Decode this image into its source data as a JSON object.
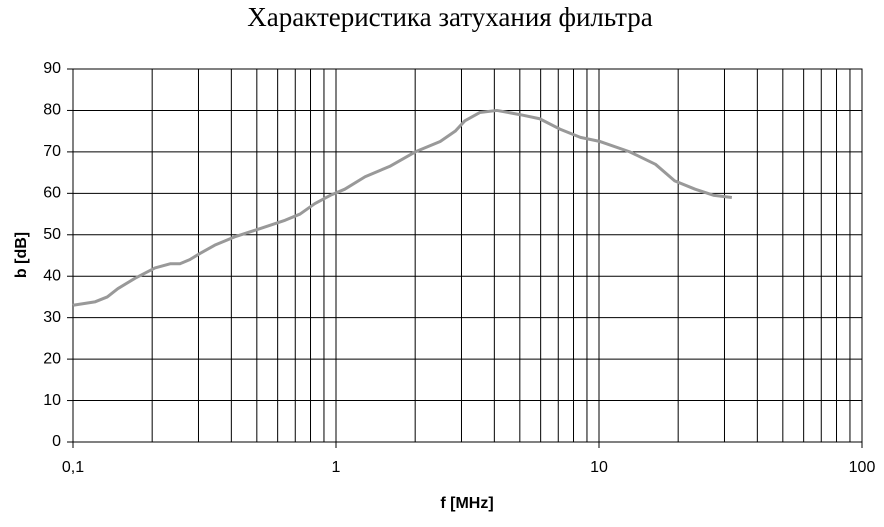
{
  "chart_data": {
    "type": "line",
    "title": "Характеристика затухания фильтра",
    "x_label": "f [MHz]",
    "y_label": "b [dB]",
    "xscale": "log",
    "grid": true,
    "xlim": [
      0.1,
      100
    ],
    "ylim": [
      0,
      90
    ],
    "xticks": [
      {
        "value": 0.1,
        "label": "0,1"
      },
      1,
      10,
      100
    ],
    "x_minor_grid": [
      0.2,
      0.3,
      0.4,
      0.5,
      0.6,
      0.7,
      0.8,
      0.9,
      2,
      3,
      4,
      5,
      6,
      7,
      8,
      9,
      20,
      30,
      40,
      50,
      60,
      70,
      80,
      90
    ],
    "yticks": [
      0,
      10,
      20,
      30,
      40,
      50,
      60,
      70,
      80,
      90
    ],
    "x": [
      0.1,
      0.121,
      0.135,
      0.148,
      0.172,
      0.205,
      0.234,
      0.255,
      0.278,
      0.304,
      0.346,
      0.412,
      0.515,
      0.64,
      0.73,
      0.83,
      0.95,
      1.08,
      1.29,
      1.6,
      2.0,
      2.49,
      2.84,
      3.09,
      3.52,
      4.09,
      5.0,
      5.95,
      7.1,
      8.5,
      10.1,
      13.1,
      16.4,
      19.4,
      23.2,
      27.4,
      32
    ],
    "series": [
      {
        "color": "#999999",
        "values": [
          33,
          33.8,
          35,
          37,
          39.5,
          42,
          43,
          43,
          44,
          45.5,
          47.5,
          49.5,
          51.5,
          53.5,
          55,
          57.5,
          59.5,
          61,
          64,
          66.5,
          70,
          72.5,
          75,
          77.5,
          79.5,
          80,
          79,
          78,
          75.5,
          73.5,
          72.5,
          70,
          67,
          63,
          61,
          59.5,
          59
        ]
      }
    ]
  }
}
